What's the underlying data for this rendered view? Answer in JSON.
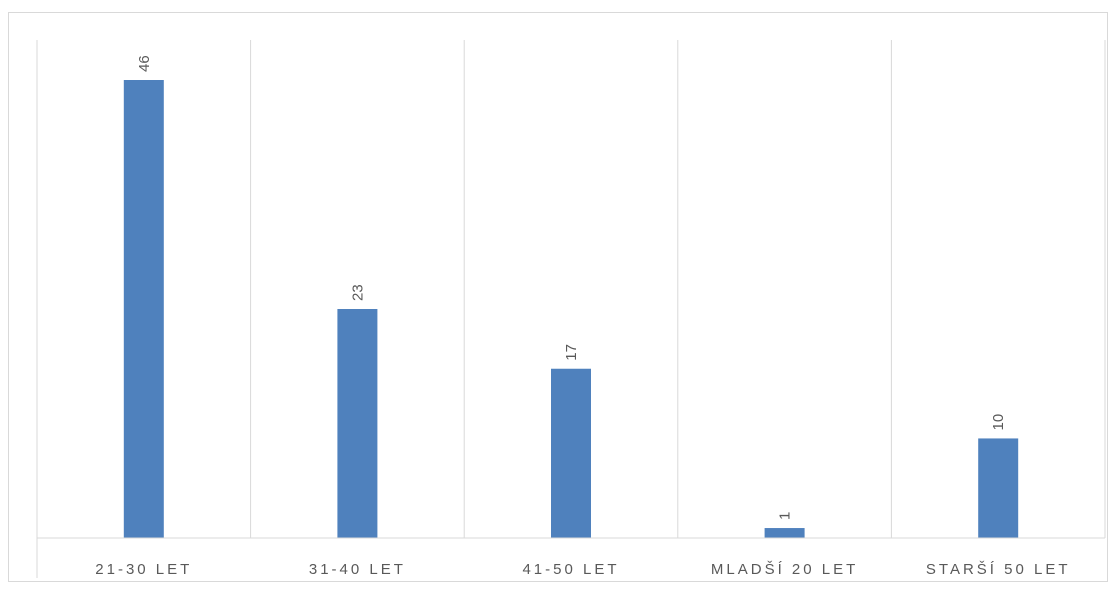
{
  "chart_data": {
    "type": "bar",
    "categories": [
      "21-30 LET",
      "31-40 LET",
      "41-50 LET",
      "MLADŠÍ 20 LET",
      "STARŠÍ 50 LET"
    ],
    "values": [
      46,
      23,
      17,
      1,
      10
    ],
    "title": "",
    "xlabel": "",
    "ylabel": "",
    "ylim": [
      0,
      50
    ],
    "grid": "vertical category separators",
    "legend": "none",
    "data_labels": "rotated, above bars"
  },
  "colors": {
    "bar": "#4f81bd",
    "grid": "#d9d9d9",
    "text": "#595959"
  }
}
